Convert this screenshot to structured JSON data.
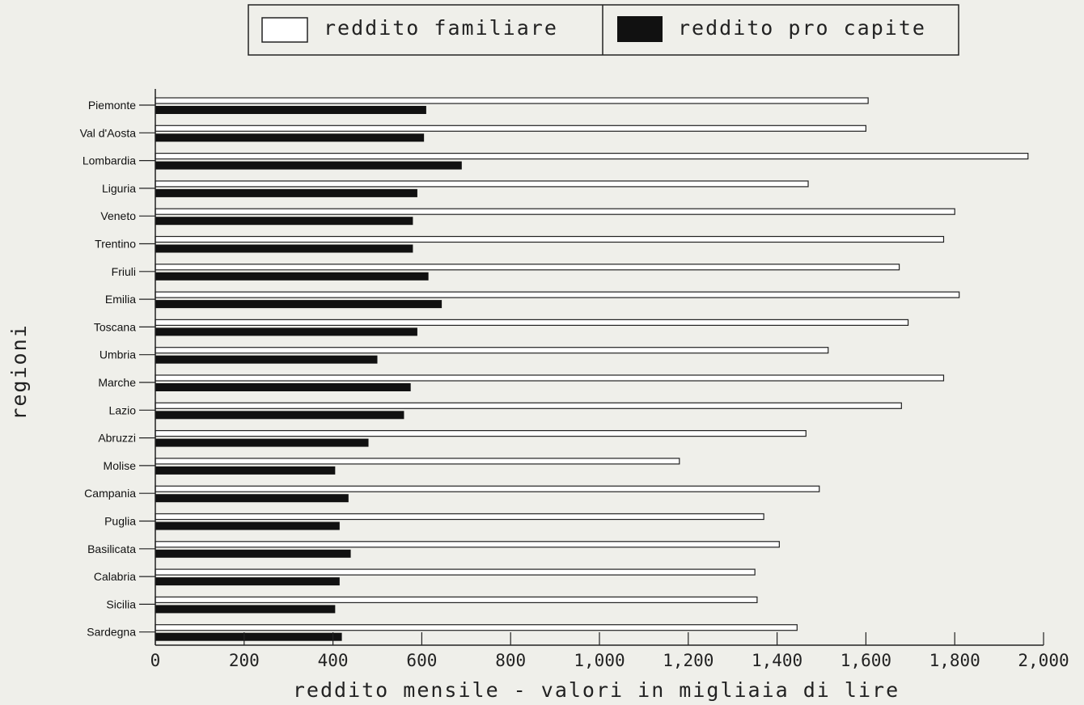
{
  "chart_data": {
    "type": "bar",
    "orientation": "horizontal",
    "categories": [
      "Piemonte",
      "Val d'Aosta",
      "Lombardia",
      "Liguria",
      "Veneto",
      "Trentino",
      "Friuli",
      "Emilia",
      "Toscana",
      "Umbria",
      "Marche",
      "Lazio",
      "Abruzzi",
      "Molise",
      "Campania",
      "Puglia",
      "Basilicata",
      "Calabria",
      "Sicilia",
      "Sardegna"
    ],
    "series": [
      {
        "name": "reddito familiare",
        "fill": "#ffffff",
        "values": [
          1605,
          1600,
          1965,
          1470,
          1800,
          1775,
          1675,
          1810,
          1695,
          1515,
          1775,
          1680,
          1465,
          1180,
          1495,
          1370,
          1405,
          1350,
          1355,
          1445
        ]
      },
      {
        "name": "reddito pro capite",
        "fill": "#111111",
        "values": [
          610,
          605,
          690,
          590,
          580,
          580,
          615,
          645,
          590,
          500,
          575,
          560,
          480,
          405,
          435,
          415,
          440,
          415,
          405,
          420
        ]
      }
    ],
    "xlabel": "reddito mensile - valori in migliaia di lire",
    "ylabel": "regioni",
    "xlim": [
      0,
      2000
    ],
    "xticks": [
      0,
      200,
      400,
      600,
      800,
      1000,
      1200,
      1400,
      1600,
      1800,
      2000
    ],
    "xtick_labels": [
      "0",
      "200",
      "400",
      "600",
      "800",
      "1,000",
      "1,200",
      "1,400",
      "1,600",
      "1,800",
      "2,000"
    ],
    "legend_position": "top",
    "grid": false
  }
}
